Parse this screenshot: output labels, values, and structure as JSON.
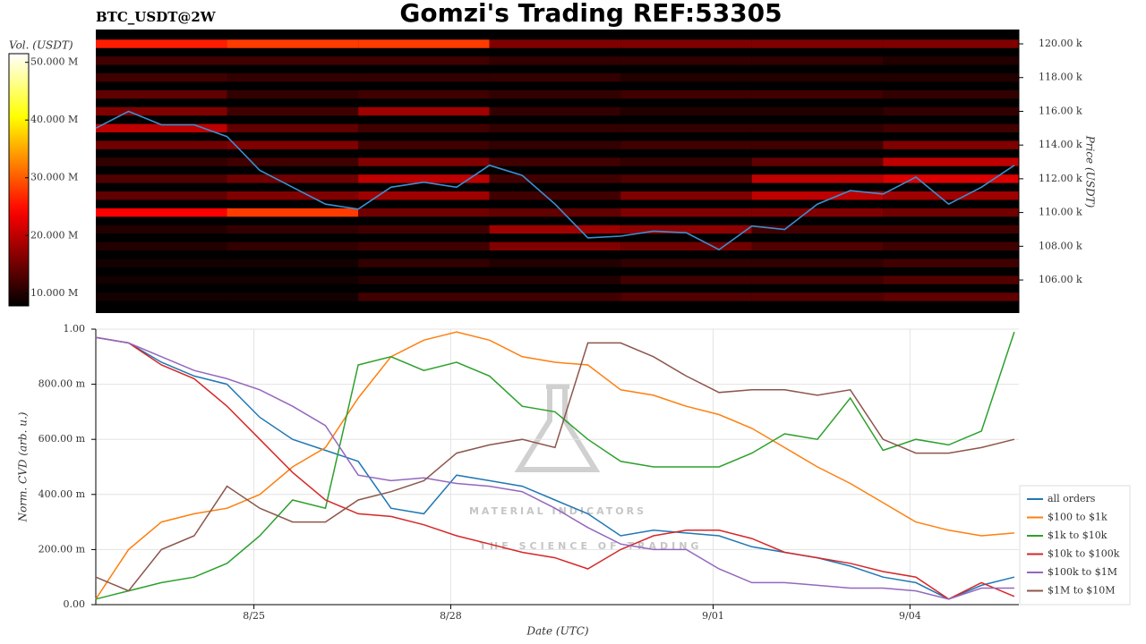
{
  "chart_data": [
    {
      "type": "heatmap",
      "title": "Gomzi's Trading REF:53305",
      "subtitle": "BTC_USDT@2W",
      "y_label": "Price (USDT)",
      "colorbar_label": "Vol. (USDT)",
      "x": [
        0,
        0.5,
        1,
        1.5,
        2,
        2.5,
        3,
        3.5,
        4,
        4.5,
        5,
        5.5,
        6,
        6.5,
        7,
        7.5,
        8,
        8.5,
        9,
        9.5,
        10,
        10.5,
        11,
        11.5,
        12,
        12.5,
        13,
        13.5,
        14
      ],
      "values": [
        115000,
        116000,
        115200,
        115200,
        114500,
        112500,
        111500,
        110500,
        110200,
        111500,
        111800,
        111500,
        112800,
        112200,
        110500,
        108500,
        108600,
        108900,
        108800,
        107800,
        109200,
        109000,
        110500,
        111300,
        111100,
        112100,
        110500,
        111500,
        112800
      ],
      "color": "#3b8fd0",
      "xlim": [
        0,
        14.07
      ],
      "ylim": [
        104040,
        120850
      ],
      "yticks": [
        {
          "value": 106000,
          "label": "106.00 k"
        },
        {
          "value": 108000,
          "label": "108.00 k"
        },
        {
          "value": 110000,
          "label": "110.00 k"
        },
        {
          "value": 112000,
          "label": "112.00 k"
        },
        {
          "value": 114000,
          "label": "114.00 k"
        },
        {
          "value": 116000,
          "label": "116.00 k"
        },
        {
          "value": 118000,
          "label": "118.00 k"
        },
        {
          "value": 120000,
          "label": "120.00 k"
        }
      ],
      "clim": [
        7800000,
        51500000
      ],
      "cticks": [
        {
          "value": 10000000,
          "label": "10.000 M"
        },
        {
          "value": 20000000,
          "label": "20.000 M"
        },
        {
          "value": 30000000,
          "label": "30.000 M"
        },
        {
          "value": 40000000,
          "label": "40.000 M"
        },
        {
          "value": 50000000,
          "label": "50.000 M"
        }
      ],
      "heat_x": [
        0,
        2,
        4,
        6,
        8,
        10,
        12,
        14.07
      ],
      "heat_levels": [
        105000,
        106000,
        107000,
        108000,
        109000,
        110000,
        111000,
        112000,
        113000,
        114000,
        115000,
        116000,
        117000,
        118000,
        119000,
        120000
      ],
      "heat_values": [
        [
          9000000.0,
          9000000.0,
          12000000.0,
          12000000.0,
          13000000.0,
          13000000.0,
          14000000.0
        ],
        [
          9000000.0,
          9000000.0,
          10000000.0,
          10000000.0,
          12000000.0,
          12000000.0,
          13000000.0
        ],
        [
          9000000.0,
          9000000.0,
          11000000.0,
          10000000.0,
          11000000.0,
          11000000.0,
          12000000.0
        ],
        [
          10000000.0,
          11000000.0,
          12000000.0,
          16000000.0,
          15000000.0,
          13000000.0,
          12000000.0
        ],
        [
          10000000.0,
          11000000.0,
          12000000.0,
          18000000.0,
          17000000.0,
          12000000.0,
          12000000.0
        ],
        [
          24000000.0,
          28000000.0,
          15000000.0,
          14000000.0,
          16000000.0,
          16000000.0,
          15000000.0
        ],
        [
          14000000.0,
          16000000.0,
          18000000.0,
          12000000.0,
          16000000.0,
          20000000.0,
          18000000.0
        ],
        [
          13000000.0,
          15000000.0,
          20000000.0,
          12000000.0,
          13000000.0,
          20000000.0,
          22000000.0
        ],
        [
          11000000.0,
          12000000.0,
          16000000.0,
          12000000.0,
          11000000.0,
          14000000.0,
          20000000.0
        ],
        [
          15000000.0,
          16000000.0,
          12000000.0,
          11000000.0,
          12000000.0,
          12000000.0,
          16000000.0
        ],
        [
          20000000.0,
          14000000.0,
          12000000.0,
          11000000.0,
          11000000.0,
          11000000.0,
          12000000.0
        ],
        [
          16000000.0,
          12000000.0,
          18000000.0,
          11000000.0,
          10000000.0,
          10000000.0,
          11000000.0
        ],
        [
          14000000.0,
          11000000.0,
          12000000.0,
          11000000.0,
          12000000.0,
          12000000.0,
          11000000.0
        ],
        [
          12000000.0,
          11000000.0,
          11000000.0,
          11000000.0,
          10000000.0,
          10000000.0,
          10000000.0
        ],
        [
          12000000.0,
          12000000.0,
          12000000.0,
          11000000.0,
          11000000.0,
          11000000.0,
          10000000.0
        ],
        [
          26000000.0,
          28000000.0,
          28000000.0,
          16000000.0,
          16000000.0,
          16000000.0,
          16000000.0
        ]
      ]
    },
    {
      "type": "line",
      "y_label": "Norm. CVD (arb. u.)",
      "x_label": "Date (UTC)",
      "watermark": [
        "MATERIAL INDICATORS",
        "THE SCIENCE OF TRADING"
      ],
      "x": [
        0,
        0.5,
        1,
        1.5,
        2,
        2.5,
        3,
        3.5,
        4,
        4.5,
        5,
        5.5,
        6,
        6.5,
        7,
        7.5,
        8,
        8.5,
        9,
        9.5,
        10,
        10.5,
        11,
        11.5,
        12,
        12.5,
        13,
        13.5,
        14
      ],
      "xlim": [
        0,
        14.07
      ],
      "ylim": [
        0,
        1
      ],
      "xticks": [
        {
          "value": 2.41,
          "label": "8/25"
        },
        {
          "value": 5.41,
          "label": "8/28"
        },
        {
          "value": 9.41,
          "label": "9/01"
        },
        {
          "value": 12.41,
          "label": "9/04"
        }
      ],
      "yticks": [
        {
          "value": 0,
          "label": "0.00"
        },
        {
          "value": 0.2,
          "label": "200.00 m"
        },
        {
          "value": 0.4,
          "label": "400.00 m"
        },
        {
          "value": 0.6,
          "label": "600.00 m"
        },
        {
          "value": 0.8,
          "label": "800.00 m"
        },
        {
          "value": 1,
          "label": "1.00"
        }
      ],
      "grid": true,
      "legend": "lower right",
      "series": [
        {
          "name": "all orders",
          "color": "#1f77b4",
          "values": [
            0.97,
            0.95,
            0.88,
            0.83,
            0.8,
            0.68,
            0.6,
            0.56,
            0.52,
            0.35,
            0.33,
            0.47,
            0.45,
            0.43,
            0.38,
            0.33,
            0.25,
            0.27,
            0.26,
            0.25,
            0.21,
            0.19,
            0.17,
            0.14,
            0.1,
            0.08,
            0.02,
            0.07,
            0.1
          ]
        },
        {
          "name": "$100 to $1k",
          "color": "#ff7f0e",
          "values": [
            0.02,
            0.2,
            0.3,
            0.33,
            0.35,
            0.4,
            0.5,
            0.57,
            0.75,
            0.9,
            0.96,
            0.99,
            0.96,
            0.9,
            0.88,
            0.87,
            0.78,
            0.76,
            0.72,
            0.69,
            0.64,
            0.57,
            0.5,
            0.44,
            0.37,
            0.3,
            0.27,
            0.25,
            0.26
          ]
        },
        {
          "name": "$1k to $10k",
          "color": "#2ca02c",
          "values": [
            0.02,
            0.05,
            0.08,
            0.1,
            0.15,
            0.25,
            0.38,
            0.35,
            0.87,
            0.9,
            0.85,
            0.88,
            0.83,
            0.72,
            0.7,
            0.6,
            0.52,
            0.5,
            0.5,
            0.5,
            0.55,
            0.62,
            0.6,
            0.75,
            0.56,
            0.6,
            0.58,
            0.63,
            0.99
          ]
        },
        {
          "name": "$10k to $100k",
          "color": "#d62728",
          "values": [
            0.97,
            0.95,
            0.87,
            0.82,
            0.72,
            0.6,
            0.48,
            0.38,
            0.33,
            0.32,
            0.29,
            0.25,
            0.22,
            0.19,
            0.17,
            0.13,
            0.2,
            0.25,
            0.27,
            0.27,
            0.24,
            0.19,
            0.17,
            0.15,
            0.12,
            0.1,
            0.02,
            0.08,
            0.03
          ]
        },
        {
          "name": "$100k to $1M",
          "color": "#9467bd",
          "values": [
            0.97,
            0.95,
            0.9,
            0.85,
            0.82,
            0.78,
            0.72,
            0.65,
            0.47,
            0.45,
            0.46,
            0.44,
            0.43,
            0.41,
            0.35,
            0.28,
            0.22,
            0.2,
            0.2,
            0.13,
            0.08,
            0.08,
            0.07,
            0.06,
            0.06,
            0.05,
            0.02,
            0.06,
            0.06
          ]
        },
        {
          "name": "$1M to $10M",
          "color": "#8c564b",
          "values": [
            0.1,
            0.05,
            0.2,
            0.25,
            0.43,
            0.35,
            0.3,
            0.3,
            0.38,
            0.41,
            0.45,
            0.55,
            0.58,
            0.6,
            0.57,
            0.95,
            0.95,
            0.9,
            0.83,
            0.77,
            0.78,
            0.78,
            0.76,
            0.78,
            0.6,
            0.55,
            0.55,
            0.57,
            0.6
          ]
        }
      ]
    }
  ]
}
